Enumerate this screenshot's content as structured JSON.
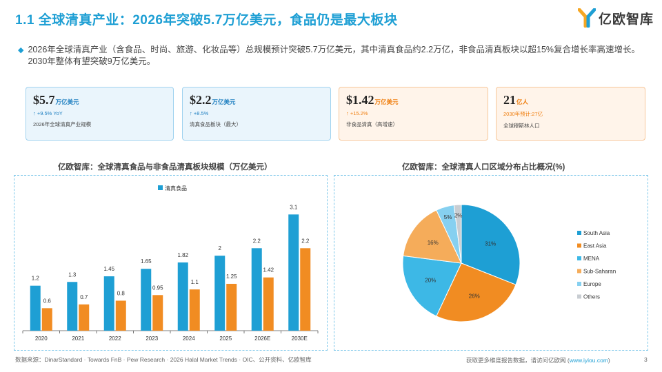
{
  "title": "1.1 全球清真产业：2026年突破5.7万亿美元，食品仍是最大板块",
  "logo": {
    "text": "亿欧智库"
  },
  "summary": "2026年全球清真产业（含食品、时尚、旅游、化妆品等）总规模预计突破5.7万亿美元，其中清真食品约2.2万亿，非食品清真板块以超15%复合增长率高速增长。2030年整体有望突破9万亿美元。",
  "cards": [
    {
      "value": "$5.7",
      "unit": "万亿美元",
      "change": "↑ +9.5% YoY",
      "desc": "2026年全球清真产业规模",
      "color": "blue"
    },
    {
      "value": "$2.2",
      "unit": "万亿美元",
      "change": "↑ +8.5%",
      "desc": "清真食品板块（最大）",
      "color": "blue"
    },
    {
      "value": "$1.42",
      "unit": "万亿美元",
      "change": "↑ +15.2%",
      "desc": "非食品清真（高增速）",
      "color": "orange"
    },
    {
      "value": "21",
      "unit": "亿人",
      "change": "2030年预计:27亿",
      "desc": "全球穆斯林人口",
      "color": "orange"
    }
  ],
  "bar_section_title": "亿欧智库：全球清真食品与非食品清真板块规模（万亿美元）",
  "pie_section_title": "亿欧智库：全球清真人口区域分布占比概况(%)",
  "chart_data": [
    {
      "type": "bar",
      "categories": [
        "2020",
        "2021",
        "2022",
        "2023",
        "2024",
        "2025",
        "2026E",
        "2030E"
      ],
      "series": [
        {
          "name": "清真食品",
          "color": "#1e9fd4",
          "values": [
            1.2,
            1.3,
            1.45,
            1.65,
            1.82,
            2,
            2.2,
            3.1
          ]
        },
        {
          "color": "#f18c22",
          "values": [
            0.6,
            0.7,
            0.8,
            0.95,
            1.1,
            1.25,
            1.42,
            2.2
          ]
        }
      ],
      "legend_position": "top",
      "grid": false
    },
    {
      "type": "pie",
      "slices": [
        {
          "label": "South Asia",
          "value": 31,
          "color": "#1e9fd4"
        },
        {
          "label": "East Asia",
          "value": 26,
          "color": "#f18c22"
        },
        {
          "label": "MENA",
          "value": 20,
          "color": "#3db8e6"
        },
        {
          "label": "Sub-Saharan",
          "value": 16,
          "color": "#f5ac5a"
        },
        {
          "label": "Europe",
          "value": 5,
          "color": "#86d0f0"
        },
        {
          "label": "Others",
          "value": 2,
          "color": "#c8cdd2"
        }
      ],
      "legend_position": "right"
    }
  ],
  "footer": {
    "sources": "数据来源：DinarStandard · Towards FnB · Pew Research · 2026 Halal Market Trends · OIC、公开资料、亿欧智库",
    "cta": "获取更多维度报告数据，请访问亿欧网 (",
    "link": "www.iyiou.com",
    "cta_end": ")",
    "page": "3"
  }
}
